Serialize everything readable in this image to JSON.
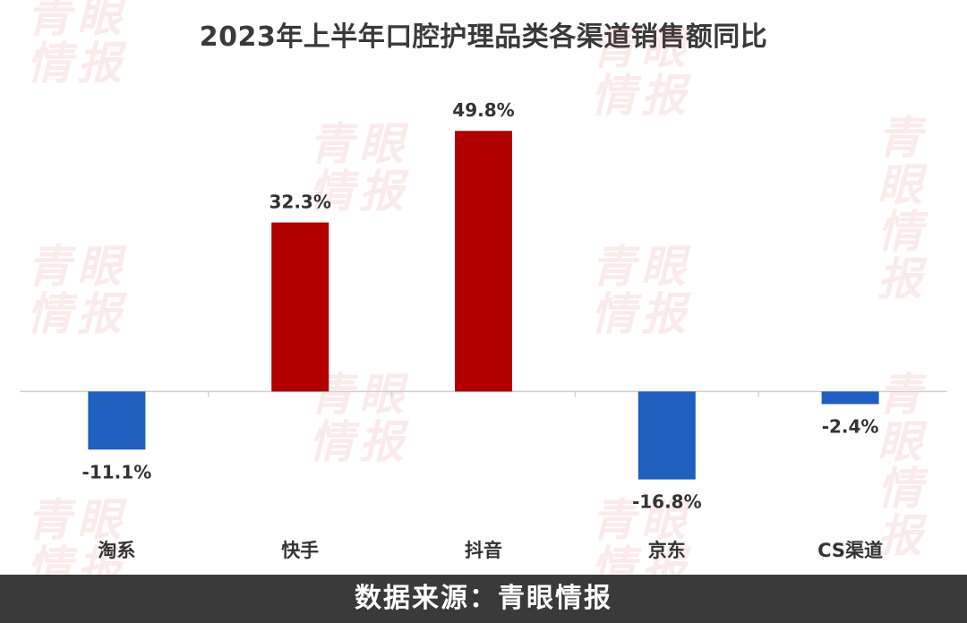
{
  "chart_data": {
    "type": "bar",
    "title": "2023年上半年口腔护理品类各渠道销售额同比",
    "categories": [
      "淘系",
      "快手",
      "抖音",
      "京东",
      "CS渠道"
    ],
    "values": [
      -11.1,
      32.3,
      49.8,
      -16.8,
      -2.4
    ],
    "data_labels": [
      "-11.1%",
      "32.3%",
      "49.8%",
      "-16.8%",
      "-2.4%"
    ],
    "ylim": [
      -22,
      56
    ],
    "grid": false,
    "legend": "none",
    "colors": {
      "positive": "#b00000",
      "negative": "#1f5fbf",
      "axis": "#d0d0d0"
    }
  },
  "watermark": {
    "text": "青眼\n情报"
  },
  "footer": {
    "source_text": "数据来源：青眼情报"
  }
}
